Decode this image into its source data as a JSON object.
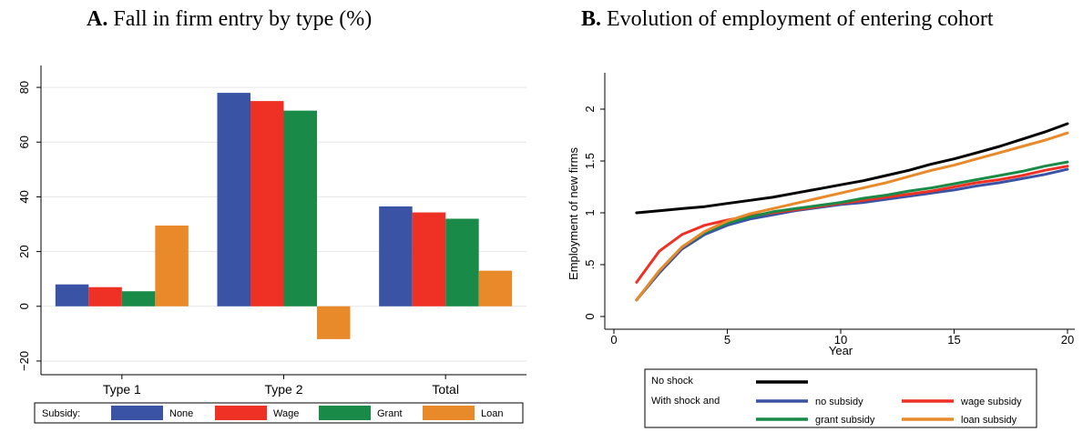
{
  "panel_a": {
    "letter": "A.",
    "title_text": "Fall in firm entry by type (%)"
  },
  "panel_b": {
    "letter": "B.",
    "title_text": "Evolution of employment of entering cohort"
  },
  "chart_data": [
    {
      "type": "bar",
      "categories": [
        "Type 1",
        "Type 2",
        "Total"
      ],
      "ylim": [
        -25,
        88
      ],
      "yticks": [
        -20,
        0,
        20,
        40,
        60,
        80
      ],
      "ytick_labels": [
        "−20",
        "0",
        "20",
        "40",
        "60",
        "80"
      ],
      "grid": true,
      "legend_position": "bottom",
      "legend_title": "Subsidy:",
      "series": [
        {
          "name": "None",
          "color": "#3a53a4",
          "values": [
            8,
            78,
            36.5
          ]
        },
        {
          "name": "Wage",
          "color": "#ee3124",
          "values": [
            7,
            75,
            34.3
          ]
        },
        {
          "name": "Grant",
          "color": "#1a8a48",
          "values": [
            5.5,
            71.5,
            32
          ]
        },
        {
          "name": "Loan",
          "color": "#e8892a",
          "values": [
            29.5,
            -12,
            13
          ]
        }
      ]
    },
    {
      "type": "line",
      "xlabel": "Year",
      "ylabel": "Employment of new firms",
      "xlim": [
        0,
        20.2
      ],
      "ylim": [
        -0.05,
        2.08
      ],
      "xticks": [
        0,
        5,
        10,
        15,
        20
      ],
      "yticks": [
        0,
        0.5,
        1,
        1.5,
        2
      ],
      "ytick_labels": [
        "0",
        ".5",
        "1",
        "1.5",
        "2"
      ],
      "grid": false,
      "legend_position": "bottom",
      "legend_row_labels": [
        "No shock",
        "With shock and"
      ],
      "x": [
        1,
        2,
        3,
        4,
        5,
        6,
        7,
        8,
        9,
        10,
        11,
        12,
        13,
        14,
        15,
        16,
        17,
        18,
        19,
        20
      ],
      "series": [
        {
          "name": "No shock",
          "color": "#000000",
          "values": [
            1.0,
            1.02,
            1.04,
            1.06,
            1.09,
            1.12,
            1.15,
            1.19,
            1.23,
            1.27,
            1.31,
            1.36,
            1.41,
            1.47,
            1.52,
            1.58,
            1.64,
            1.71,
            1.78,
            1.86
          ]
        },
        {
          "name": "no subsidy",
          "color": "#3a53a4",
          "values": [
            0.16,
            0.42,
            0.65,
            0.79,
            0.88,
            0.94,
            0.98,
            1.02,
            1.05,
            1.08,
            1.1,
            1.13,
            1.16,
            1.19,
            1.22,
            1.26,
            1.29,
            1.33,
            1.37,
            1.42
          ]
        },
        {
          "name": "wage subsidy",
          "color": "#ee3124",
          "values": [
            0.33,
            0.63,
            0.79,
            0.88,
            0.93,
            0.97,
            1.0,
            1.03,
            1.06,
            1.09,
            1.12,
            1.15,
            1.18,
            1.21,
            1.25,
            1.29,
            1.32,
            1.36,
            1.41,
            1.45
          ]
        },
        {
          "name": "grant subsidy",
          "color": "#1a8a48",
          "values": [
            0.16,
            0.44,
            0.67,
            0.81,
            0.9,
            0.96,
            1.01,
            1.04,
            1.07,
            1.1,
            1.14,
            1.17,
            1.21,
            1.24,
            1.28,
            1.32,
            1.36,
            1.4,
            1.45,
            1.49
          ]
        },
        {
          "name": "loan subsidy",
          "color": "#e8892a",
          "values": [
            0.16,
            0.44,
            0.67,
            0.82,
            0.92,
            0.99,
            1.04,
            1.09,
            1.14,
            1.19,
            1.24,
            1.29,
            1.35,
            1.41,
            1.46,
            1.52,
            1.58,
            1.64,
            1.7,
            1.77
          ]
        }
      ]
    }
  ]
}
